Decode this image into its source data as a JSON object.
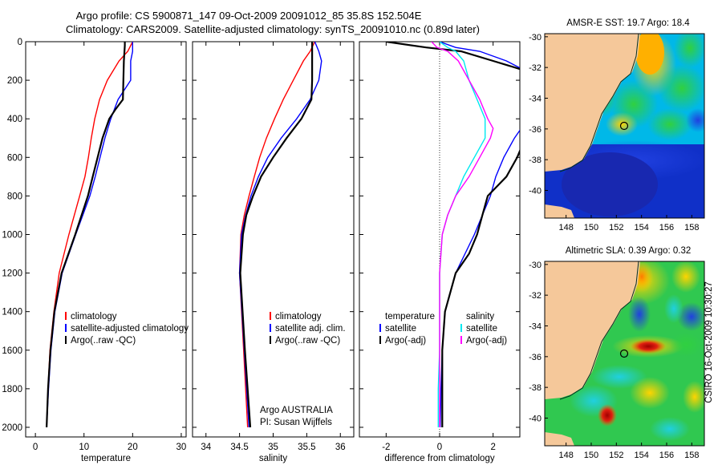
{
  "header": {
    "line1": "Argo profile: CS 5900871_147 09-Oct-2009 20091012_85 35.8S 152.504E",
    "line2": "Climatology: CARS2009. Satellite-adjusted climatology: synTS_20091010.nc (0.89d later)"
  },
  "side_label": "CSIRO 16-Oct-2009 10:30:27",
  "chart_data": [
    {
      "type": "line",
      "id": "temperature",
      "xlabel": "temperature",
      "ylabel": "",
      "xlim": [
        -2,
        31
      ],
      "ylim": [
        2050,
        0
      ],
      "xticks": [
        0,
        10,
        20,
        30
      ],
      "yticks": [
        0,
        200,
        400,
        600,
        800,
        1000,
        1200,
        1400,
        1600,
        1800,
        2000
      ],
      "legend": [
        "climatology",
        "satellite-adjusted climatology",
        "Argo(..raw -QC)"
      ],
      "series": [
        {
          "name": "climatology",
          "color": "#ff0000",
          "depth": [
            0,
            50,
            100,
            200,
            300,
            400,
            500,
            600,
            700,
            800,
            1000,
            1200,
            1400,
            1600,
            1800,
            2000
          ],
          "values": [
            20,
            19,
            17.2,
            14.8,
            13.2,
            12.2,
            11.5,
            10.9,
            10.2,
            9.1,
            6.9,
            4.9,
            3.8,
            3.0,
            2.6,
            2.3
          ]
        },
        {
          "name": "satellite-adjusted climatology",
          "color": "#0000ff",
          "depth": [
            0,
            50,
            100,
            200,
            300,
            400,
            500,
            600,
            700,
            800,
            1000,
            1200,
            1400,
            1600,
            1800,
            2000
          ],
          "values": [
            20,
            20,
            19.6,
            19.6,
            17,
            15.5,
            14.3,
            13.3,
            12.3,
            11.2,
            8.3,
            5.5,
            4.0,
            3.2,
            2.7,
            2.3
          ]
        },
        {
          "name": "Argo(..raw -QC)",
          "color": "#000000",
          "depth": [
            0,
            20,
            100,
            200,
            300,
            350,
            400,
            500,
            600,
            700,
            800,
            1000,
            1200,
            1400,
            1600,
            1800,
            2000
          ],
          "values": [
            18.4,
            18.4,
            18.2,
            18.1,
            18.0,
            16.5,
            15.2,
            13.8,
            12.8,
            11.8,
            10.8,
            8.2,
            5.4,
            3.9,
            3.1,
            2.6,
            2.3
          ]
        }
      ]
    },
    {
      "type": "line",
      "id": "salinity",
      "xlabel": "salinity",
      "xlim": [
        33.8,
        36.2
      ],
      "ylim": [
        2050,
        0
      ],
      "xticks": [
        34,
        34.5,
        35,
        35.5,
        36
      ],
      "legend": [
        "climatology",
        "satellite adj. clim.",
        "Argo(..raw -QC)"
      ],
      "annotation": [
        "Argo AUSTRALIA",
        "PI: Susan Wijffels"
      ],
      "series": [
        {
          "name": "climatology",
          "color": "#ff0000",
          "depth": [
            0,
            50,
            100,
            200,
            300,
            400,
            500,
            600,
            700,
            800,
            900,
            1000,
            1200,
            1600,
            2000
          ],
          "values": [
            35.62,
            35.55,
            35.45,
            35.3,
            35.15,
            35.02,
            34.9,
            34.8,
            34.72,
            34.64,
            34.57,
            34.52,
            34.5,
            34.56,
            34.62
          ]
        },
        {
          "name": "satellite adj. clim.",
          "color": "#0000ff",
          "depth": [
            0,
            50,
            100,
            200,
            300,
            400,
            500,
            600,
            700,
            800,
            900,
            1000,
            1200,
            1600,
            2000
          ],
          "values": [
            35.62,
            35.68,
            35.72,
            35.68,
            35.55,
            35.35,
            35.12,
            34.92,
            34.78,
            34.67,
            34.59,
            34.53,
            34.5,
            34.57,
            34.64
          ]
        },
        {
          "name": "Argo(..raw -QC)",
          "color": "#000000",
          "depth": [
            0,
            20,
            100,
            200,
            300,
            400,
            500,
            600,
            700,
            800,
            900,
            1000,
            1200,
            1600,
            2000
          ],
          "values": [
            35.58,
            35.58,
            35.58,
            35.58,
            35.57,
            35.42,
            35.2,
            35.0,
            34.82,
            34.7,
            34.6,
            34.55,
            34.51,
            34.58,
            34.66
          ]
        }
      ]
    },
    {
      "type": "line",
      "id": "difference",
      "xlabel": "difference from climatology",
      "xlim": [
        -3,
        3
      ],
      "ylim": [
        2050,
        0
      ],
      "xticks": [
        -2,
        0,
        2
      ],
      "legend": [
        "temperature",
        "satellite",
        "Argo(-adj)",
        "salinity",
        "satellite",
        "Argo(-adj)"
      ],
      "series": [
        {
          "name": "temperature satellite",
          "color": "#0000ff",
          "depth": [
            0,
            30,
            50,
            100,
            150,
            200,
            300,
            400,
            500,
            600,
            700,
            800,
            900,
            1000,
            1200,
            1400,
            1600,
            1800,
            2000
          ],
          "values": [
            0,
            0.6,
            1.5,
            2.5,
            3.2,
            3.8,
            3.8,
            3.3,
            2.8,
            2.4,
            2.1,
            1.9,
            1.6,
            1.3,
            0.6,
            0.2,
            0.1,
            0.05,
            0.02
          ]
        },
        {
          "name": "temperature Argo(-adj)",
          "color": "#000000",
          "depth": [
            0,
            30,
            50,
            100,
            150,
            200,
            300,
            400,
            500,
            600,
            700,
            800,
            900,
            1000,
            1100,
            1200,
            1400,
            1600,
            1800,
            2000
          ],
          "values": [
            -2.0,
            -0.5,
            0.8,
            2.0,
            3.2,
            3.8,
            3.8,
            3.5,
            3.2,
            2.9,
            2.5,
            1.8,
            1.6,
            1.4,
            1.1,
            0.6,
            0.2,
            0.1,
            0.1,
            0.1
          ]
        },
        {
          "name": "salinity satellite",
          "color": "#00e8f0",
          "depth": [
            0,
            30,
            50,
            100,
            200,
            300,
            400,
            500,
            600,
            700,
            800,
            900,
            1000,
            1200,
            1400,
            1600,
            1800,
            2000
          ],
          "values": [
            0,
            0.3,
            0.6,
            0.9,
            1.1,
            1.4,
            1.7,
            1.7,
            1.3,
            0.9,
            0.6,
            0.3,
            0.1,
            0.0,
            0.0,
            0.0,
            -0.05,
            -0.05
          ]
        },
        {
          "name": "salinity Argo(-adj)",
          "color": "#ff00ff",
          "depth": [
            0,
            30,
            50,
            100,
            200,
            300,
            400,
            450,
            500,
            600,
            700,
            800,
            900,
            1000,
            1200,
            1400,
            1600,
            1800,
            2000
          ],
          "values": [
            -0.3,
            -0.1,
            0.3,
            0.7,
            1.1,
            1.5,
            1.8,
            2.0,
            1.9,
            1.5,
            1.1,
            0.6,
            0.3,
            0.1,
            0.0,
            0.0,
            0.0,
            0.0,
            0.0
          ]
        }
      ]
    },
    {
      "type": "heatmap",
      "id": "sst-map",
      "title": "AMSR-E SST: 19.7  Argo: 18.4",
      "xlim": [
        146.3,
        159.0
      ],
      "ylim": [
        -41.8,
        -29.8
      ],
      "xticks": [
        148,
        150,
        152,
        154,
        156,
        158
      ],
      "yticks": [
        -30,
        -32,
        -34,
        -36,
        -38,
        -40
      ],
      "argo_position": {
        "lon": 152.5,
        "lat": -35.8
      }
    },
    {
      "type": "heatmap",
      "id": "sla-map",
      "title": "Altimetric SLA: 0.39  Argo: 0.32",
      "xlim": [
        146.3,
        159.0
      ],
      "ylim": [
        -41.8,
        -29.8
      ],
      "xticks": [
        148,
        150,
        152,
        154,
        156,
        158
      ],
      "yticks": [
        -30,
        -32,
        -34,
        -36,
        -38,
        -40
      ],
      "argo_position": {
        "lon": 152.5,
        "lat": -35.8
      }
    }
  ]
}
